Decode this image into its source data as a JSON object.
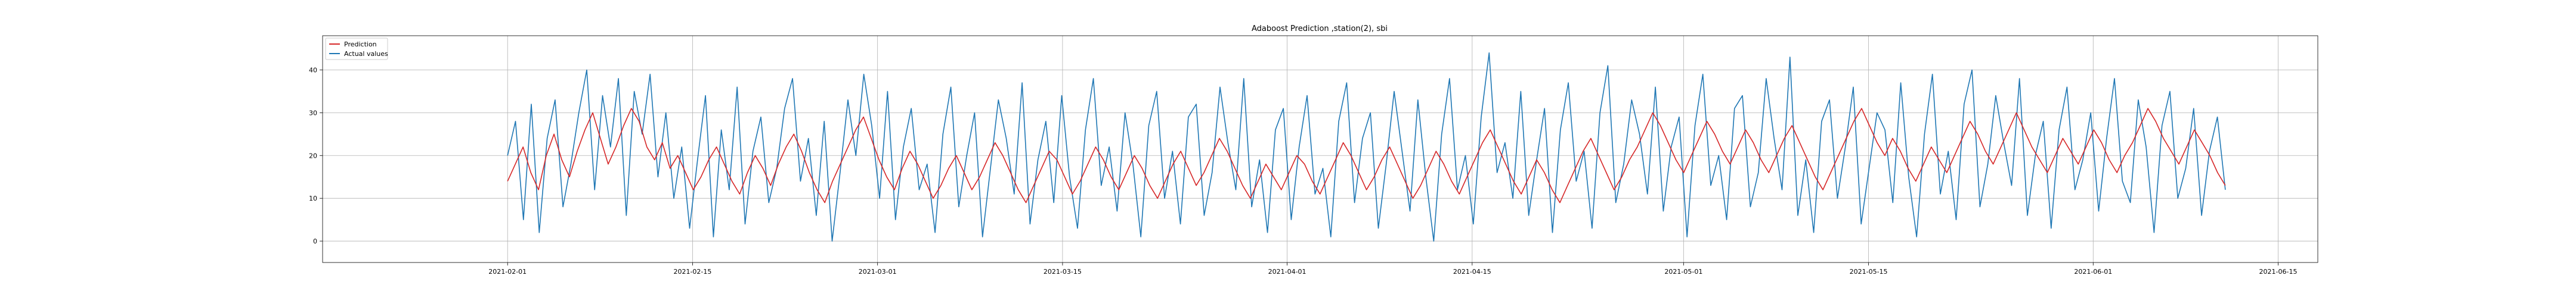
{
  "chart_data": {
    "type": "line",
    "title": "Adaboost Prediction ,station(2), sbi",
    "xlabel": "",
    "ylabel": "",
    "grid": true,
    "legend_placement": "top-left",
    "x_range": [
      "2021-01-18",
      "2021-06-18"
    ],
    "x_ticks": [
      "2021-02-01",
      "2021-02-15",
      "2021-03-01",
      "2021-03-15",
      "2021-04-01",
      "2021-04-15",
      "2021-05-01",
      "2021-05-15",
      "2021-06-01",
      "2021-06-15"
    ],
    "ylim": [
      -5,
      48
    ],
    "y_ticks": [
      0,
      10,
      20,
      30,
      40
    ],
    "x_start": "2021-02-01",
    "x_end": "2021-06-11",
    "series": [
      {
        "name": "Prediction",
        "color": "#d62728",
        "values": [
          14,
          18,
          22,
          16,
          12,
          20,
          25,
          19,
          15,
          21,
          26,
          30,
          24,
          18,
          22,
          27,
          31,
          28,
          22,
          19,
          23,
          17,
          20,
          16,
          12,
          15,
          19,
          22,
          18,
          14,
          11,
          16,
          20,
          17,
          13,
          18,
          22,
          25,
          21,
          16,
          12,
          9,
          14,
          18,
          22,
          26,
          29,
          24,
          19,
          15,
          12,
          17,
          21,
          18,
          14,
          10,
          13,
          17,
          20,
          16,
          12,
          15,
          19,
          23,
          20,
          16,
          12,
          9,
          13,
          17,
          21,
          19,
          15,
          11,
          14,
          18,
          22,
          19,
          15,
          12,
          16,
          20,
          17,
          13,
          10,
          14,
          18,
          21,
          17,
          13,
          16,
          20,
          24,
          21,
          17,
          13,
          10,
          14,
          18,
          15,
          12,
          16,
          20,
          18,
          14,
          11,
          15,
          19,
          23,
          20,
          16,
          12,
          15,
          19,
          22,
          18,
          14,
          10,
          13,
          17,
          21,
          18,
          14,
          11,
          15,
          19,
          23,
          26,
          22,
          18,
          14,
          11,
          15,
          19,
          16,
          12,
          9,
          13,
          17,
          21,
          24,
          20,
          16,
          12,
          15,
          19,
          22,
          26,
          30,
          27,
          23,
          19,
          16,
          20,
          24,
          28,
          25,
          21,
          18,
          22,
          26,
          23,
          19,
          16,
          20,
          24,
          27,
          23,
          19,
          15,
          12,
          16,
          20,
          24,
          28,
          31,
          27,
          23,
          20,
          24,
          21,
          17,
          14,
          18,
          22,
          19,
          16,
          20,
          24,
          28,
          25,
          21,
          18,
          22,
          26,
          30,
          26,
          22,
          19,
          16,
          20,
          24,
          21,
          18,
          22,
          26,
          23,
          19,
          16,
          20,
          23,
          27,
          31,
          28,
          24,
          21,
          18,
          22,
          26,
          23,
          20,
          16,
          13
        ],
        "_x_step": "daily-ish aggregated samples spread across x_start..x_end"
      },
      {
        "name": "Actual values",
        "color": "#1f77b4",
        "values": [
          20,
          28,
          5,
          32,
          2,
          24,
          33,
          8,
          18,
          30,
          40,
          12,
          34,
          22,
          38,
          6,
          35,
          25,
          39,
          15,
          30,
          10,
          22,
          3,
          19,
          34,
          1,
          26,
          12,
          36,
          4,
          21,
          29,
          9,
          17,
          31,
          38,
          14,
          24,
          6,
          28,
          0,
          16,
          33,
          20,
          39,
          27,
          10,
          35,
          5,
          22,
          31,
          12,
          18,
          2,
          25,
          36,
          8,
          20,
          30,
          1,
          17,
          33,
          24,
          11,
          37,
          4,
          19,
          28,
          9,
          34,
          15,
          3,
          26,
          38,
          13,
          22,
          7,
          30,
          18,
          1,
          27,
          35,
          10,
          21,
          4,
          29,
          32,
          6,
          16,
          36,
          23,
          12,
          38,
          8,
          19,
          2,
          26,
          31,
          5,
          22,
          34,
          11,
          17,
          1,
          28,
          37,
          9,
          24,
          30,
          3,
          18,
          35,
          21,
          7,
          33,
          15,
          0,
          25,
          38,
          12,
          20,
          4,
          29,
          44,
          16,
          23,
          10,
          35,
          6,
          19,
          31,
          2,
          26,
          37,
          14,
          21,
          3,
          30,
          41,
          9,
          18,
          33,
          25,
          11,
          36,
          7,
          22,
          29,
          1,
          27,
          39,
          13,
          20,
          5,
          31,
          34,
          8,
          16,
          38,
          24,
          12,
          43,
          6,
          19,
          2,
          28,
          33,
          10,
          22,
          36,
          4,
          17,
          30,
          26,
          9,
          37,
          15,
          1,
          25,
          39,
          11,
          21,
          5,
          32,
          40,
          8,
          18,
          34,
          23,
          13,
          38,
          6,
          20,
          28,
          3,
          26,
          36,
          12,
          19,
          30,
          7,
          24,
          38,
          14,
          9,
          33,
          22,
          2,
          27,
          35,
          10,
          17,
          31,
          6,
          21,
          29,
          12
        ],
        "_x_step": "daily-ish aggregated samples spread across x_start..x_end"
      }
    ]
  }
}
